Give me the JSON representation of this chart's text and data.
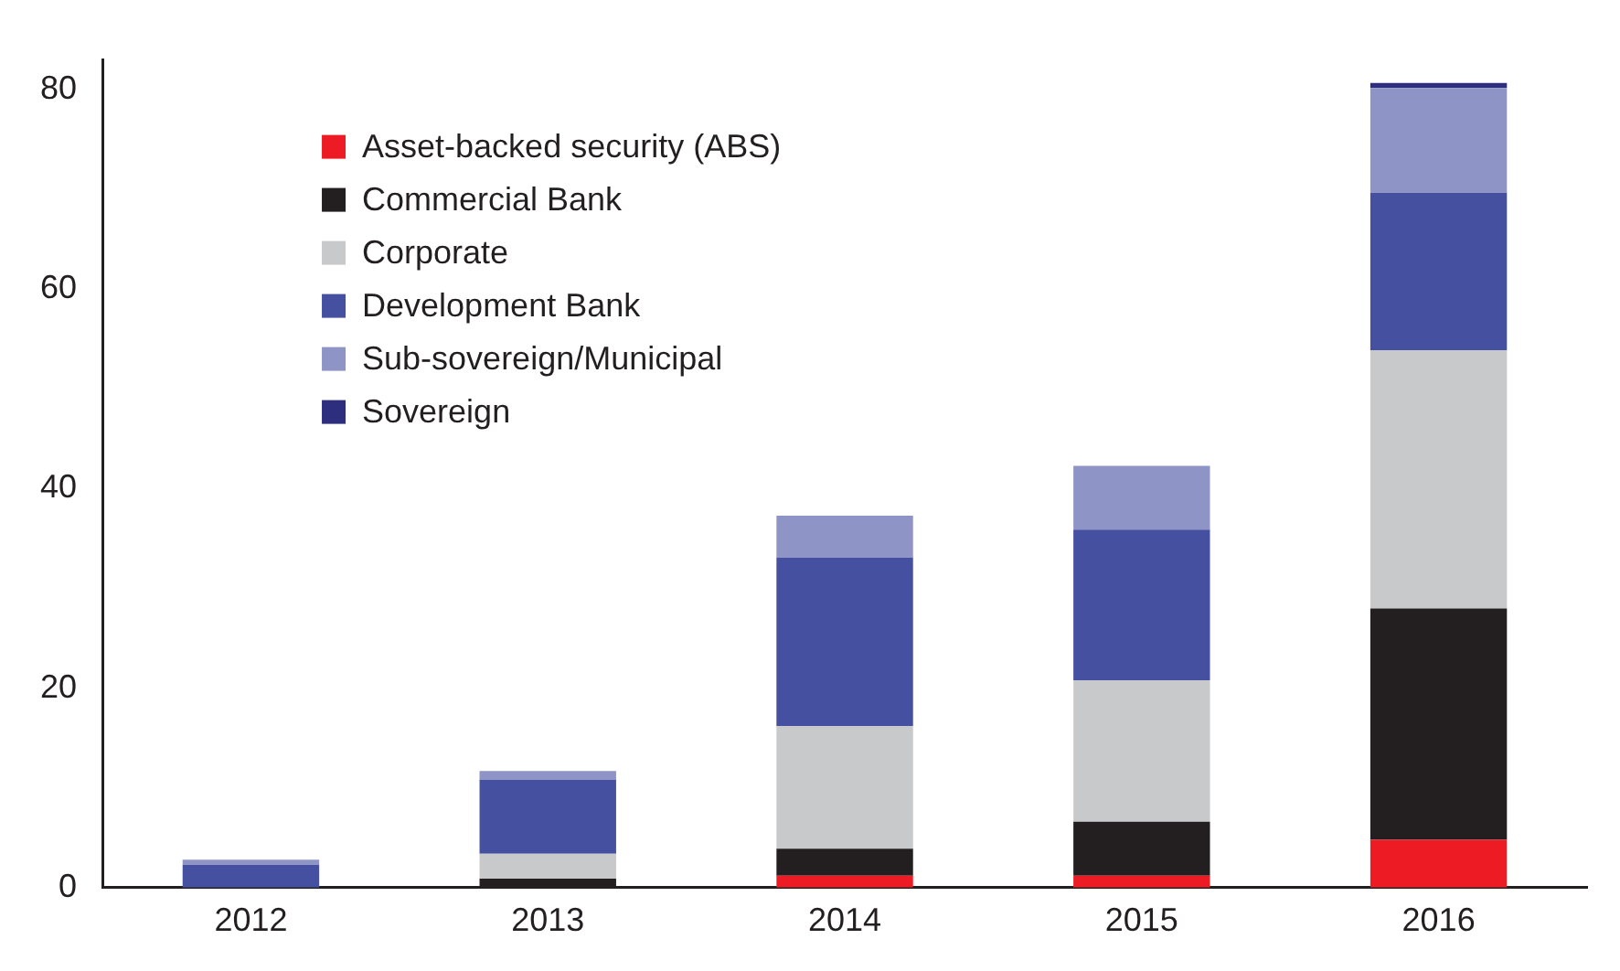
{
  "chart_data": {
    "type": "bar",
    "stacked": true,
    "categories": [
      "2012",
      "2013",
      "2014",
      "2015",
      "2016"
    ],
    "series": [
      {
        "name": "Asset-backed security (ABS)",
        "color": "#ed1c24",
        "values": [
          0,
          0,
          1.2,
          1.2,
          4.8
        ]
      },
      {
        "name": "Commercial Bank",
        "color": "#231f20",
        "values": [
          0,
          0.9,
          2.7,
          5.4,
          23.2
        ]
      },
      {
        "name": "Corporate",
        "color": "#c8c9cb",
        "values": [
          null,
          2.5,
          12.3,
          14.2,
          25.9
        ]
      },
      {
        "name": "Development Bank",
        "color": "#4650a0",
        "values": [
          2.3,
          7.4,
          16.9,
          15.1,
          15.8
        ]
      },
      {
        "name": "Sub-sovereign/Municipal",
        "color": "#8f94c6",
        "values": [
          0.5,
          0.9,
          4.2,
          6.4,
          10.5
        ]
      },
      {
        "name": "Sovereign",
        "color": "#2e2e7f",
        "values": [
          0,
          0,
          0,
          0,
          0.5
        ]
      }
    ],
    "ylim": [
      0,
      83
    ],
    "yticks": [
      0,
      20,
      40,
      60,
      80
    ],
    "grid": false,
    "legend": "top left"
  }
}
